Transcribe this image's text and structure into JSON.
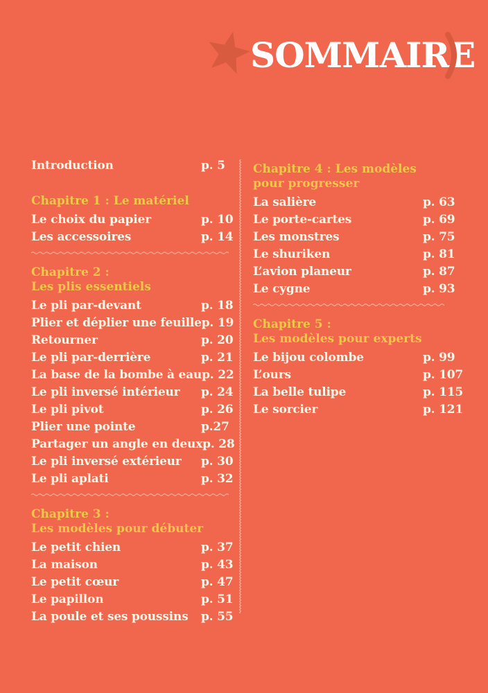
{
  "page": {
    "title": "SOMMAIRE",
    "colors": {
      "background": "#F1674E",
      "accent_dark": "#D85A3F",
      "heading_yellow": "#F2C64B",
      "text_cream": "#FDF4E6",
      "divider_cream": "#FBEEDC"
    },
    "icons": {
      "star": "star-icon",
      "closing_paren": "closing-paren-icon"
    }
  },
  "toc": {
    "columns": [
      {
        "sections": [
          {
            "heading_lines": [],
            "items": [
              {
                "label": "Introduction",
                "page": "p. 5"
              }
            ],
            "divider_after": false
          },
          {
            "heading_lines": [
              "Chapitre 1 : Le matériel"
            ],
            "items": [
              {
                "label": "Le choix du papier",
                "page": "p. 10"
              },
              {
                "label": "Les accessoires",
                "page": "p. 14"
              }
            ],
            "divider_after": true
          },
          {
            "heading_lines": [
              "Chapitre 2 :",
              "Les plis essentiels"
            ],
            "items": [
              {
                "label": "Le pli par-devant",
                "page": "p. 18"
              },
              {
                "label": "Plier et déplier une feuille",
                "page": "p. 19"
              },
              {
                "label": "Retourner",
                "page": "p. 20"
              },
              {
                "label": "Le pli par-derrière",
                "page": "p. 21"
              },
              {
                "label": "La base de la bombe à eau",
                "page": "p. 22"
              },
              {
                "label": "Le pli inversé intérieur",
                "page": "p. 24"
              },
              {
                "label": "Le pli pivot",
                "page": "p. 26"
              },
              {
                "label": "Plier une pointe",
                "page": "p.27"
              },
              {
                "label": "Partager un angle en deux",
                "page": "p. 28"
              },
              {
                "label": "Le pli inversé extérieur",
                "page": "p. 30"
              },
              {
                "label": "Le pli aplati",
                "page": "p. 32"
              }
            ],
            "divider_after": true
          },
          {
            "heading_lines": [
              "Chapitre 3 :",
              "Les modèles pour débuter"
            ],
            "items": [
              {
                "label": "Le petit chien",
                "page": "p. 37"
              },
              {
                "label": "La maison",
                "page": "p. 43"
              },
              {
                "label": "Le petit cœur",
                "page": "p. 47"
              },
              {
                "label": "Le papillon",
                "page": "p. 51"
              },
              {
                "label": "La poule et ses poussins",
                "page": "p. 55"
              }
            ],
            "divider_after": false
          }
        ]
      },
      {
        "sections": [
          {
            "heading_lines": [
              "Chapitre 4 : Les modèles",
              "pour progresser"
            ],
            "items": [
              {
                "label": "La salière",
                "page": "p. 63"
              },
              {
                "label": "Le porte-cartes",
                "page": "p. 69"
              },
              {
                "label": "Les monstres",
                "page": "p. 75"
              },
              {
                "label": "Le shuriken",
                "page": "p. 81"
              },
              {
                "label": "L’avion planeur",
                "page": "p. 87"
              },
              {
                "label": "Le cygne",
                "page": "p. 93"
              }
            ],
            "divider_after": true
          },
          {
            "heading_lines": [
              "Chapitre 5 :",
              "Les modèles pour experts"
            ],
            "items": [
              {
                "label": "Le bijou colombe",
                "page": "p. 99"
              },
              {
                "label": "L’ours",
                "page": "p. 107"
              },
              {
                "label": "La belle tulipe",
                "page": "p. 115"
              },
              {
                "label": "Le sorcier",
                "page": "p. 121"
              }
            ],
            "divider_after": false
          }
        ]
      }
    ]
  }
}
